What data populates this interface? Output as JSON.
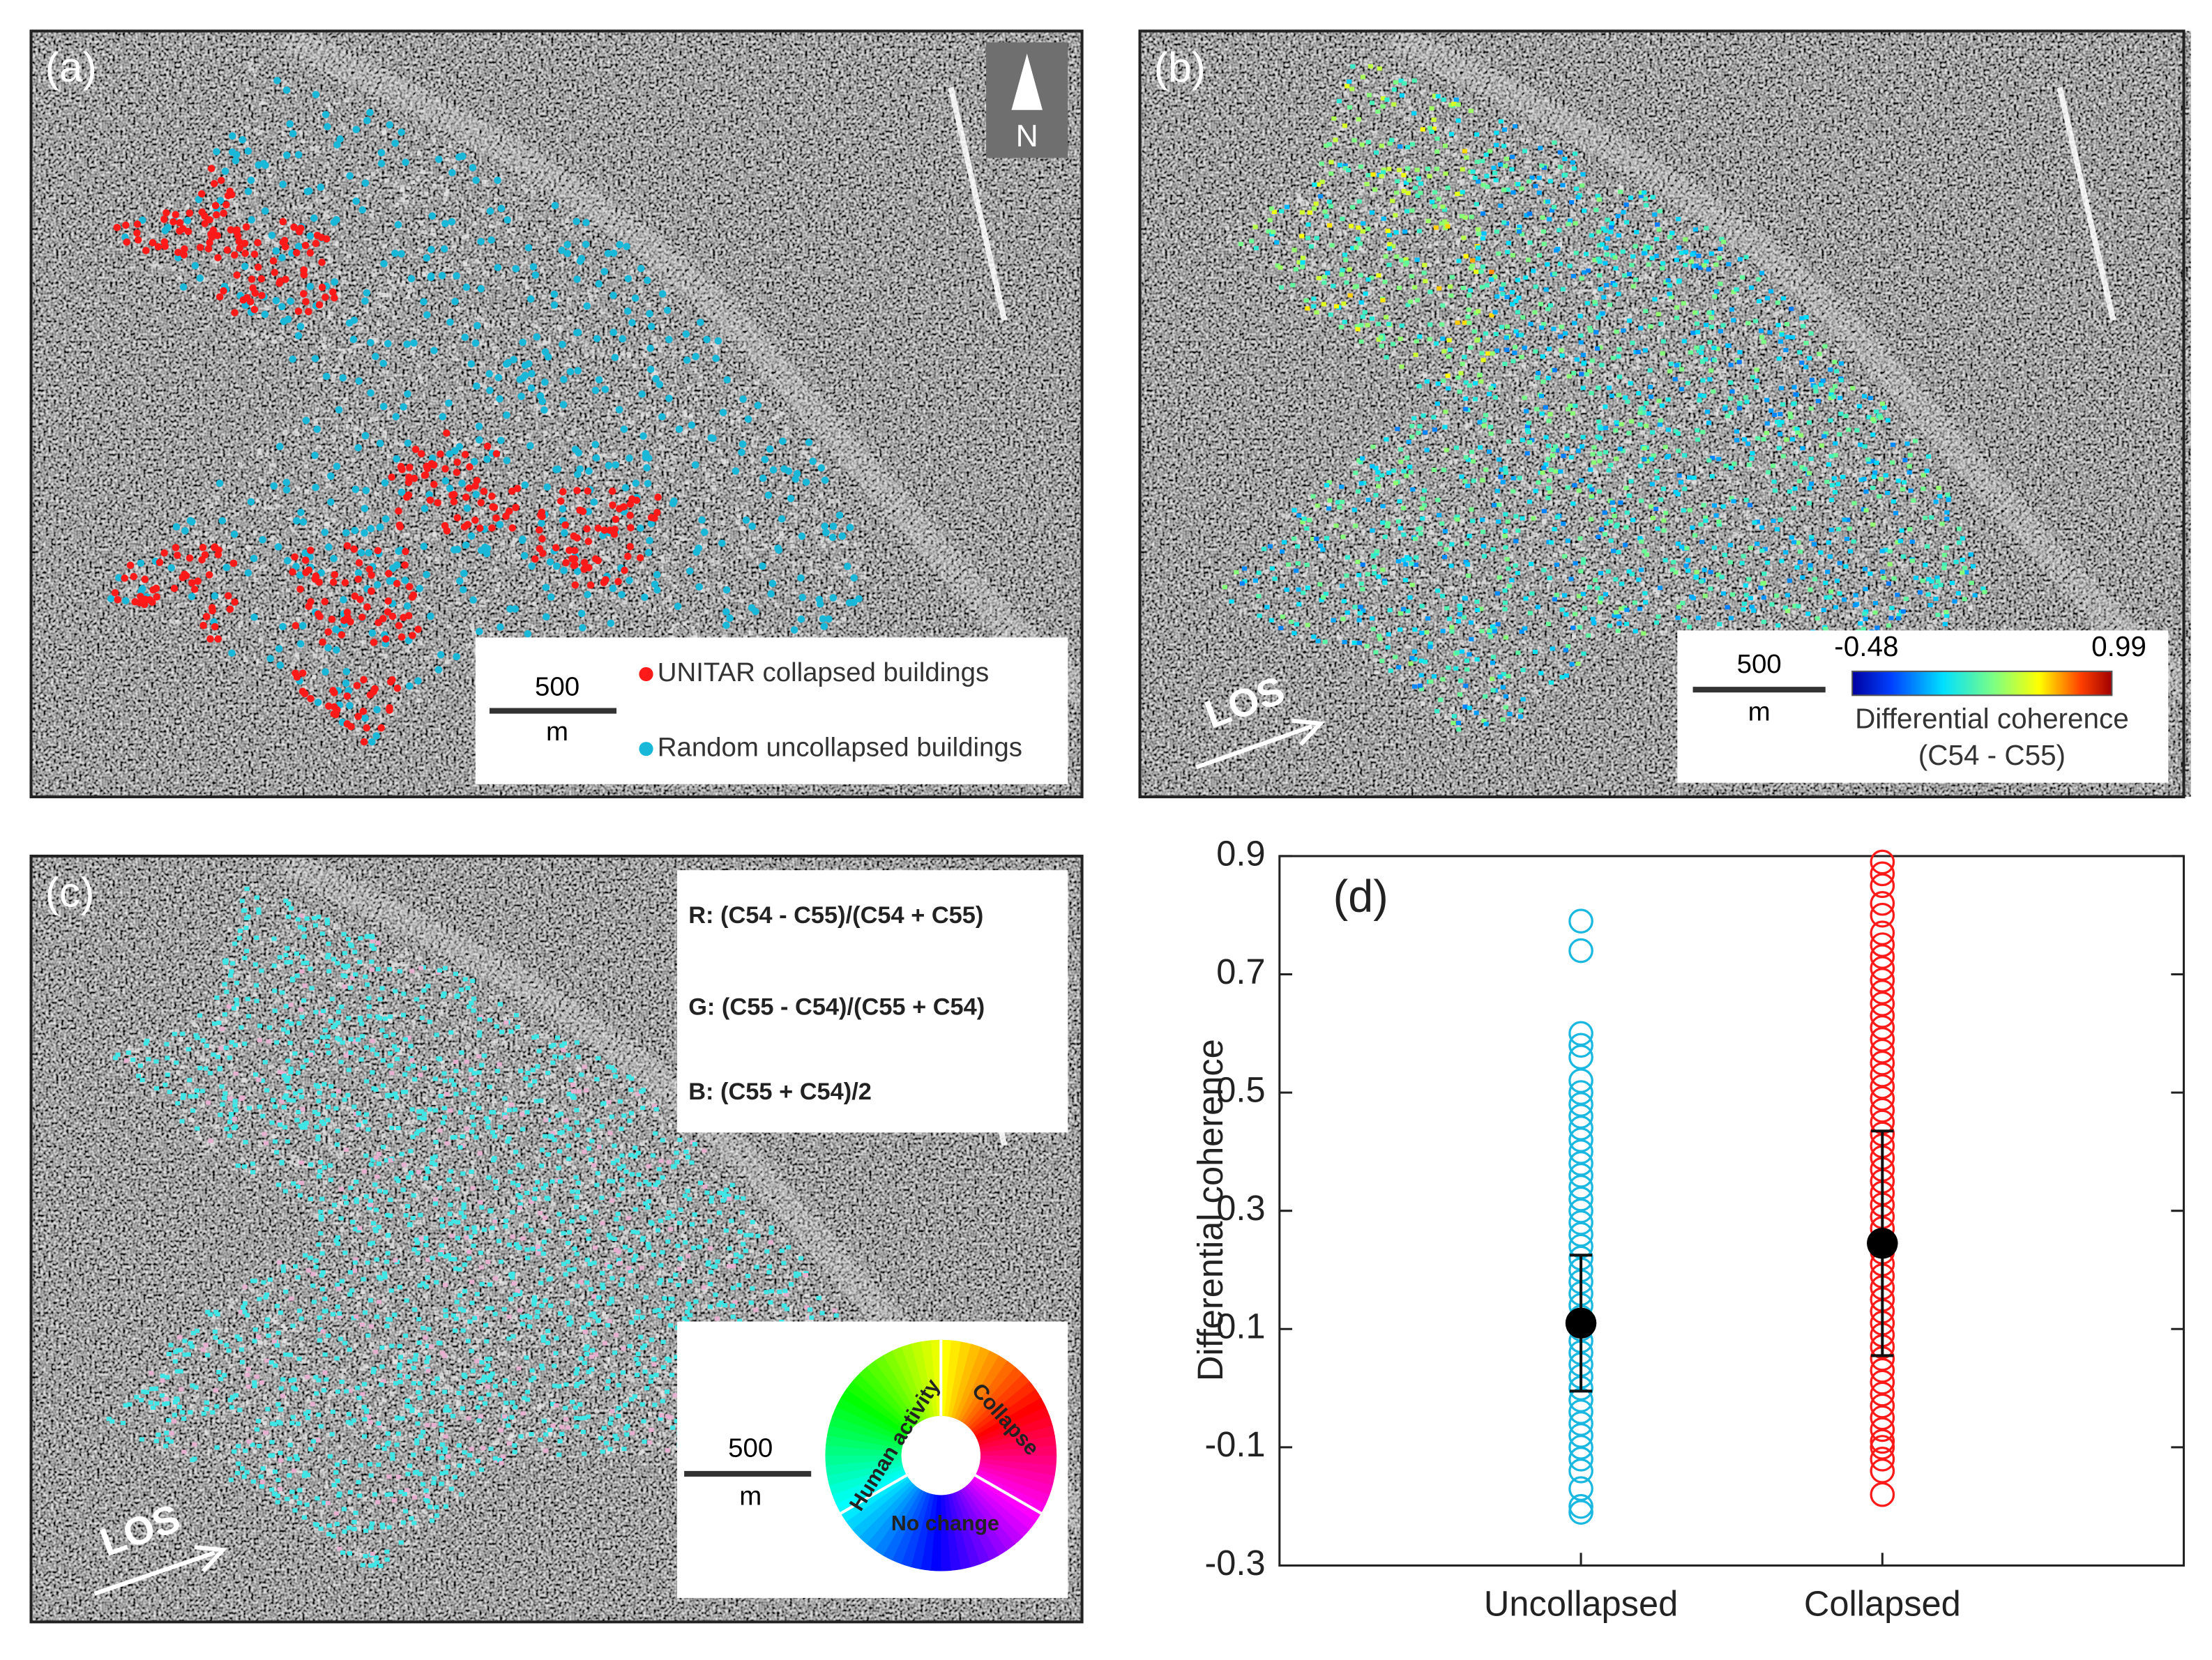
{
  "panels": {
    "a": {
      "label": "(a)",
      "north": "N",
      "scale": {
        "value": 500,
        "unit": "m"
      },
      "legend": [
        {
          "label": "UNITAR collapsed buildings",
          "color": "#ff1a1a"
        },
        {
          "label": "Random uncollapsed buildings",
          "color": "#1ab8d8"
        }
      ]
    },
    "b": {
      "label": "(b)",
      "los": "LOS",
      "scale": {
        "value": 500,
        "unit": "m"
      },
      "colorbar": {
        "min": -0.48,
        "max": 0.99,
        "title": "Differential coherence",
        "subtitle": "(C54 - C55)"
      }
    },
    "c": {
      "label": "(c)",
      "los": "LOS",
      "formulas": [
        "R: (C54 - C55)/(C54 + C55)",
        "G: (C55 - C54)/(C55 + C54)",
        "B: (C55 + C54)/2"
      ],
      "scale": {
        "value": 500,
        "unit": "m"
      },
      "wheel": [
        "Human activity",
        "Collapse",
        "No change"
      ]
    }
  },
  "chart_data": {
    "type": "strip",
    "panel_label": "(d)",
    "ylabel": "Differential coherence",
    "categories": [
      "Uncollapsed",
      "Collapsed"
    ],
    "ylim": [
      -0.3,
      0.9
    ],
    "yticks": [
      -0.3,
      -0.1,
      0.1,
      0.3,
      0.5,
      0.7,
      0.9
    ],
    "series": [
      {
        "color": "#1ab8e0",
        "mean": 0.11,
        "error": 0.115,
        "values": [
          0.79,
          0.74,
          0.6,
          0.58,
          0.56,
          0.52,
          0.5,
          0.48,
          0.46,
          0.44,
          0.42,
          0.4,
          0.38,
          0.36,
          0.34,
          0.32,
          0.3,
          0.28,
          0.26,
          0.24,
          0.22,
          0.2,
          0.18,
          0.16,
          0.14,
          0.12,
          0.1,
          0.08,
          0.06,
          0.04,
          0.02,
          0.0,
          -0.02,
          -0.04,
          -0.06,
          -0.08,
          -0.1,
          -0.12,
          -0.14,
          -0.17,
          -0.2,
          -0.21
        ]
      },
      {
        "color": "#ff1a1a",
        "mean": 0.245,
        "error": 0.19,
        "values": [
          0.89,
          0.87,
          0.85,
          0.82,
          0.8,
          0.77,
          0.75,
          0.73,
          0.71,
          0.69,
          0.67,
          0.65,
          0.63,
          0.61,
          0.59,
          0.57,
          0.55,
          0.53,
          0.51,
          0.49,
          0.47,
          0.45,
          0.43,
          0.41,
          0.39,
          0.37,
          0.35,
          0.33,
          0.31,
          0.29,
          0.27,
          0.25,
          0.23,
          0.21,
          0.19,
          0.17,
          0.15,
          0.13,
          0.11,
          0.09,
          0.07,
          0.05,
          0.03,
          0.01,
          -0.01,
          -0.03,
          -0.05,
          -0.07,
          -0.09,
          -0.1,
          -0.12,
          -0.14,
          -0.18
        ]
      }
    ]
  }
}
